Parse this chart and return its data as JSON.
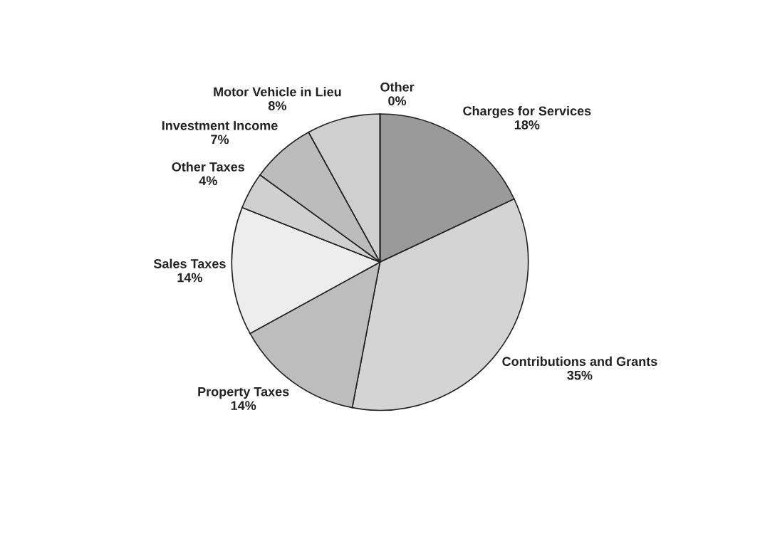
{
  "chart_data": {
    "type": "pie",
    "categories": [
      "Charges for Services",
      "Contributions and Grants",
      "Property Taxes",
      "Sales Taxes",
      "Other Taxes",
      "Investment Income",
      "Motor Vehicle in Lieu",
      "Other"
    ],
    "values": [
      18,
      35,
      14,
      14,
      4,
      7,
      8,
      0
    ],
    "value_labels": [
      "18%",
      "35%",
      "14%",
      "14%",
      "4%",
      "7%",
      "8%",
      "0%"
    ],
    "colors": [
      "#9a9a9a",
      "#d4d4d4",
      "#bdbdbd",
      "#ededed",
      "#d0d0d0",
      "#bcbcbc",
      "#cfcfcf",
      "#ffffff"
    ]
  }
}
